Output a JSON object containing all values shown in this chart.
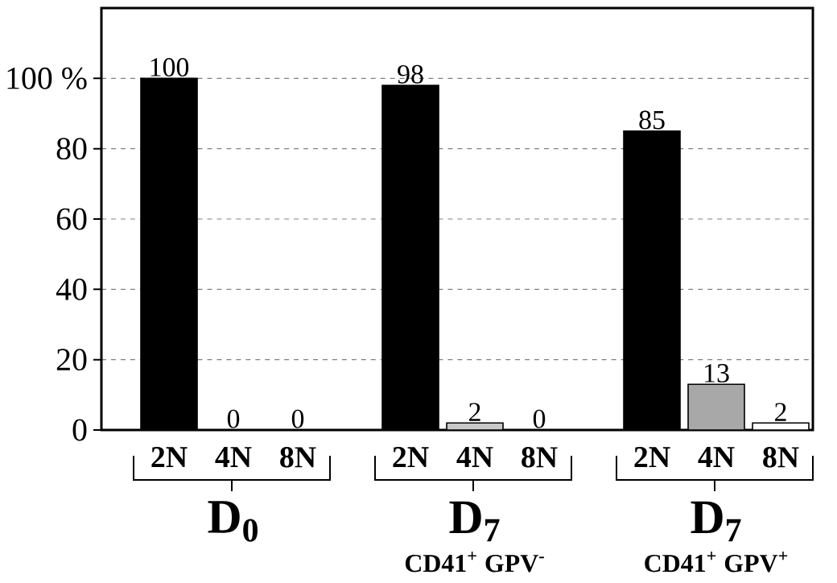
{
  "chart_data": {
    "type": "bar",
    "categories": [
      "2N",
      "4N",
      "8N",
      "2N",
      "4N",
      "8N",
      "2N",
      "4N",
      "8N"
    ],
    "values": [
      100,
      0,
      0,
      98,
      2,
      0,
      85,
      13,
      2
    ],
    "colors": [
      "#000000",
      "#c8c8c8",
      "#ffffff",
      "#000000",
      "#c8c8c8",
      "#ffffff",
      "#000000",
      "#a8a8a8",
      "#ffffff"
    ],
    "ylim": [
      0,
      120
    ],
    "yticks": [
      0,
      20,
      40,
      60,
      80,
      {
        "value": 100,
        "label": "100 %"
      }
    ],
    "grid": "y",
    "data_labels": true,
    "annotations": [
      "D$_{0}$",
      "D$_{7}$",
      "CD41$^{+}$ GPV$^{-}$",
      "D$_{7}$",
      "CD41$^{+}$ GPV$^{+}$"
    ]
  }
}
